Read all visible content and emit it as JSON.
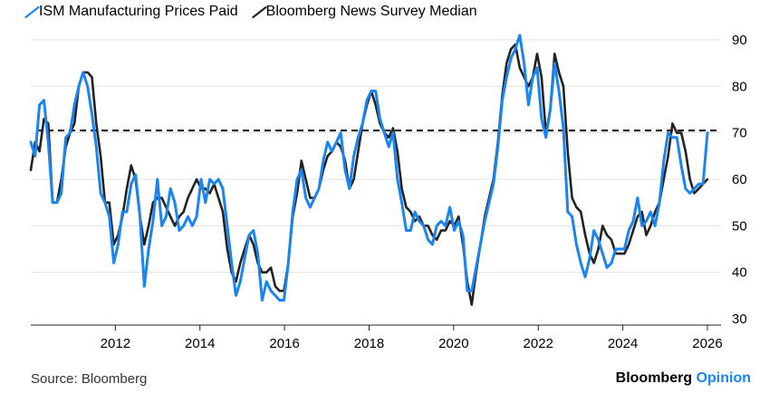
{
  "brand": {
    "name": "Bloomberg",
    "suffix": "Opinion"
  },
  "source": "Source: Bloomberg",
  "chart_data": {
    "type": "line",
    "x_start": 2010.0,
    "x_end": 2026.0,
    "xlim": [
      2010.0,
      2026.3
    ],
    "ylim": [
      30,
      90
    ],
    "y_ticks": [
      30,
      40,
      50,
      60,
      70,
      80,
      90
    ],
    "x_ticks": [
      2012,
      2014,
      2016,
      2018,
      2020,
      2022,
      2024,
      2026
    ],
    "x_tick_labels": [
      "2012",
      "2014",
      "2016",
      "2018",
      "2020",
      "2022",
      "2024",
      "2026"
    ],
    "y_axis_side": "right",
    "grid": "horizontal",
    "legend": "top-left",
    "reference_line": {
      "y": 70.5,
      "style": "dashed",
      "color": "#000000"
    },
    "series": [
      {
        "name": "Bloomberg News Survey Median",
        "color": "#222222",
        "values": [
          62,
          68,
          66,
          73,
          72,
          55,
          55,
          60,
          67,
          70,
          72,
          80,
          83,
          83,
          82,
          72,
          65,
          55,
          55,
          46,
          48,
          52,
          58,
          63,
          60,
          52,
          46,
          50,
          55,
          56,
          56,
          54,
          52,
          50,
          52,
          53,
          56,
          58,
          60,
          58,
          58,
          57,
          59,
          56,
          53,
          45,
          40,
          38,
          42,
          45,
          48,
          46,
          42,
          40,
          40,
          41,
          37,
          36,
          36,
          42,
          52,
          57,
          64,
          60,
          56,
          56,
          58,
          62,
          65,
          66,
          68,
          67,
          64,
          58,
          60,
          66,
          72,
          76,
          79,
          76,
          72,
          70,
          69,
          71,
          66,
          58,
          54,
          53,
          51,
          52,
          50,
          50,
          48,
          47,
          49,
          49,
          51,
          50,
          52,
          46,
          38,
          33,
          40,
          46,
          52,
          56,
          60,
          68,
          78,
          85,
          88,
          89,
          84,
          82,
          80,
          82,
          87,
          82,
          70,
          75,
          87,
          83,
          80,
          66,
          56,
          54,
          53,
          48,
          44,
          42,
          45,
          50,
          48,
          47,
          44,
          44,
          44,
          46,
          49,
          52,
          53,
          48,
          50,
          53,
          55,
          60,
          65,
          72,
          70,
          70,
          66,
          60,
          57,
          58,
          59,
          60
        ],
        "last_value": 60
      },
      {
        "name": "ISM Manufacturing Prices Paid",
        "color": "#1a84f0",
        "values": [
          68,
          65,
          76,
          77,
          68,
          55,
          55,
          57,
          69,
          70,
          76,
          80,
          83,
          80,
          74,
          67,
          57,
          55,
          52,
          42,
          46,
          53,
          53,
          59,
          61,
          52,
          37,
          45,
          51,
          60,
          50,
          52,
          58,
          55,
          49,
          50,
          52,
          50,
          52,
          60,
          55,
          60,
          59,
          60,
          58,
          50,
          42,
          35,
          38,
          43,
          48,
          49,
          44,
          34,
          38,
          36,
          35,
          34,
          34,
          42,
          53,
          60,
          62,
          56,
          54,
          56,
          58,
          64,
          68,
          66,
          68,
          70,
          62,
          58,
          65,
          69,
          72,
          77,
          79,
          79,
          73,
          70,
          67,
          70,
          60,
          55,
          49,
          49,
          53,
          51,
          50,
          47,
          46,
          50,
          51,
          50,
          54,
          49,
          51,
          48,
          36,
          36,
          41,
          46,
          51,
          55,
          59,
          67,
          77,
          82,
          86,
          88,
          91,
          85,
          76,
          82,
          84,
          73,
          69,
          75,
          85,
          79,
          71,
          53,
          52,
          46,
          42,
          39,
          43,
          49,
          47,
          44,
          41,
          42,
          45,
          45,
          45,
          49,
          51,
          56,
          50,
          51,
          53,
          50,
          55,
          64,
          70,
          69,
          69,
          63,
          58,
          57,
          58,
          59,
          59,
          70
        ],
        "last_value": 69.5
      }
    ]
  }
}
